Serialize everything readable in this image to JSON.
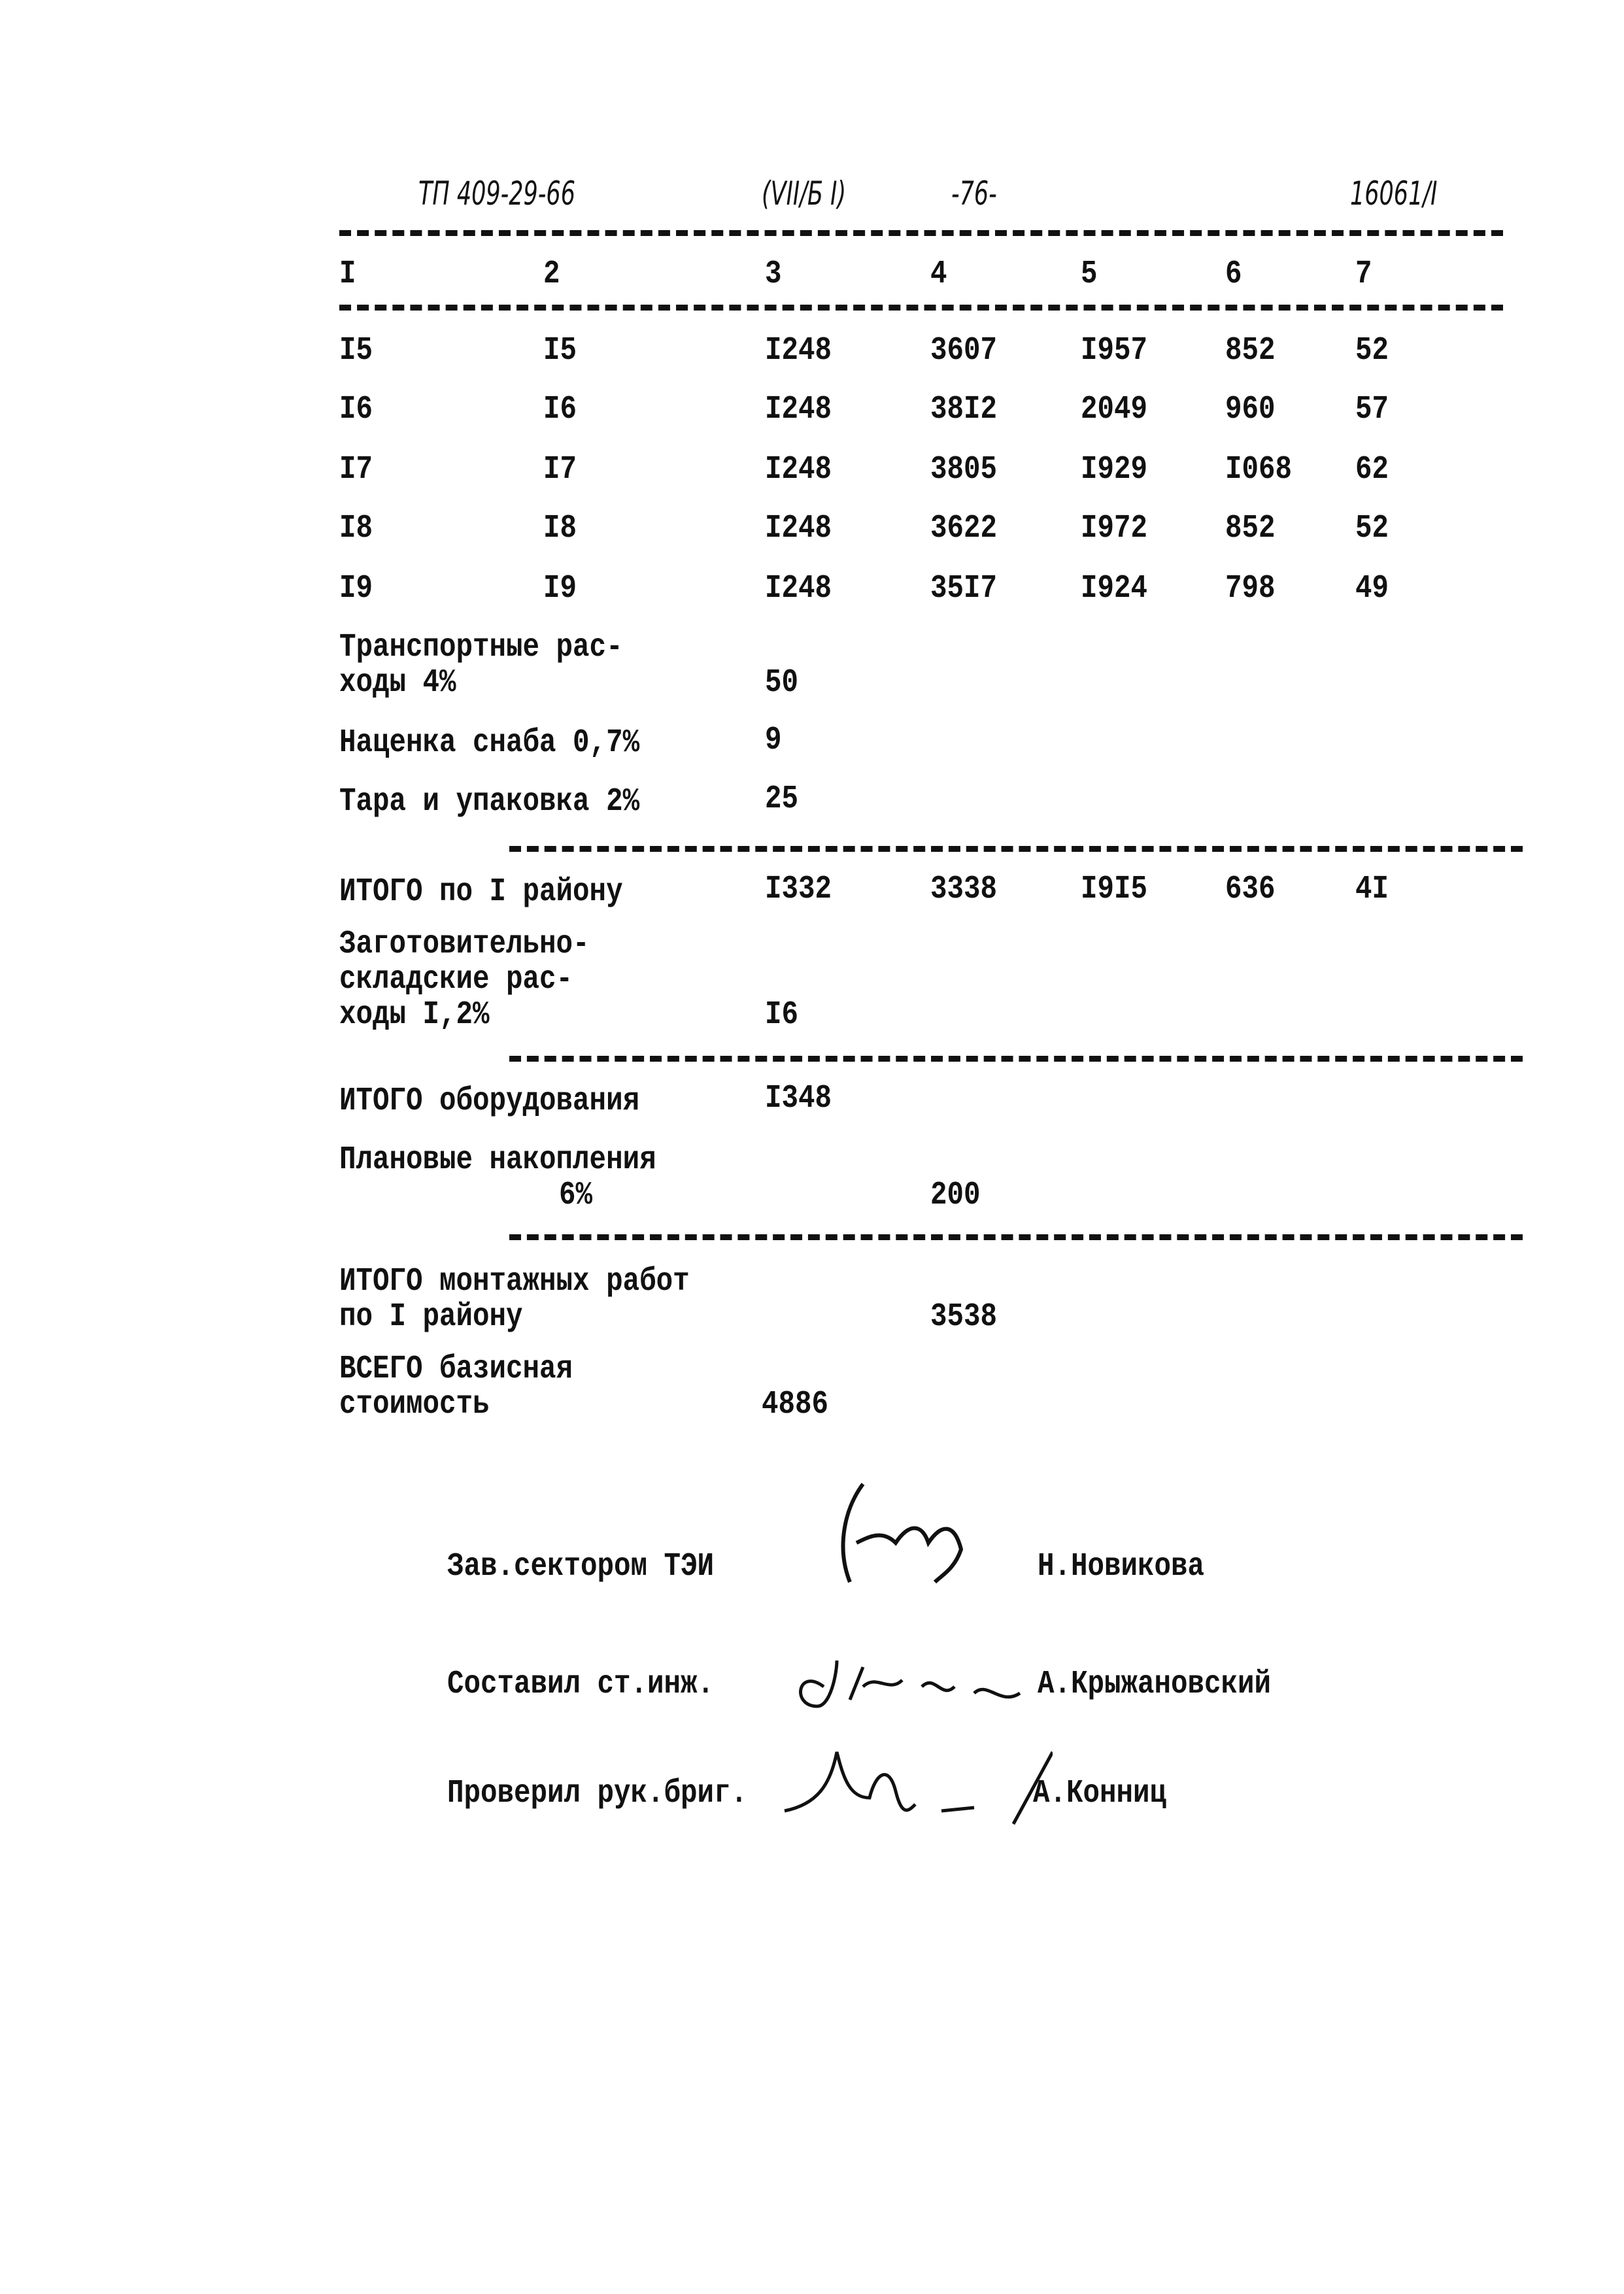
{
  "header": {
    "doc_code": "ТП 409-29-66",
    "section": "(VII/Б I)",
    "page": "-76-",
    "sheet": "16061/I"
  },
  "columns": [
    "I",
    "2",
    "3",
    "4",
    "5",
    "6",
    "7"
  ],
  "rows": [
    [
      "I5",
      "I5",
      "I248",
      "3607",
      "I957",
      "852",
      "52"
    ],
    [
      "I6",
      "I6",
      "I248",
      "38I2",
      "2049",
      "960",
      "57"
    ],
    [
      "I7",
      "I7",
      "I248",
      "3805",
      "I929",
      "I068",
      "62"
    ],
    [
      "I8",
      "I8",
      "I248",
      "3622",
      "I972",
      "852",
      "52"
    ],
    [
      "I9",
      "I9",
      "I248",
      "35I7",
      "I924",
      "798",
      "49"
    ]
  ],
  "summary": {
    "transport": {
      "line1": "Транспортные рас-",
      "line2": "ходы 4%",
      "value": "50"
    },
    "markup": {
      "label": "Наценка снаба 0,7%",
      "value": "9"
    },
    "packing": {
      "label": "Тара и упаковка 2%",
      "value": "25"
    },
    "total_region": {
      "label": "ИТОГО по I району",
      "values": [
        "I332",
        "3338",
        "I9I5",
        "636",
        "4I"
      ]
    },
    "procurement": {
      "line1": "Заготовительно-",
      "line2": "складские рас-",
      "line3": "ходы I,2%",
      "value": "I6"
    },
    "total_equipment": {
      "label": "ИТОГО оборудования",
      "value": "I348"
    },
    "planned": {
      "line1": "Плановые накопления",
      "line2": "6%",
      "value": "200"
    },
    "total_install": {
      "line1": "ИТОГО монтажных работ",
      "line2": "по I району",
      "value": "3538"
    },
    "grand_total": {
      "line1": "ВСЕГО базисная",
      "line2": "стоимость",
      "value": "4886"
    }
  },
  "signatures": [
    {
      "role": "Зав.сектором ТЭИ",
      "name": "Н.Новикова"
    },
    {
      "role": "Составил ст.инж.",
      "name": "А.Крыжановский"
    },
    {
      "role": "Проверил рук.бриг.",
      "name": "А.Конниц"
    }
  ]
}
